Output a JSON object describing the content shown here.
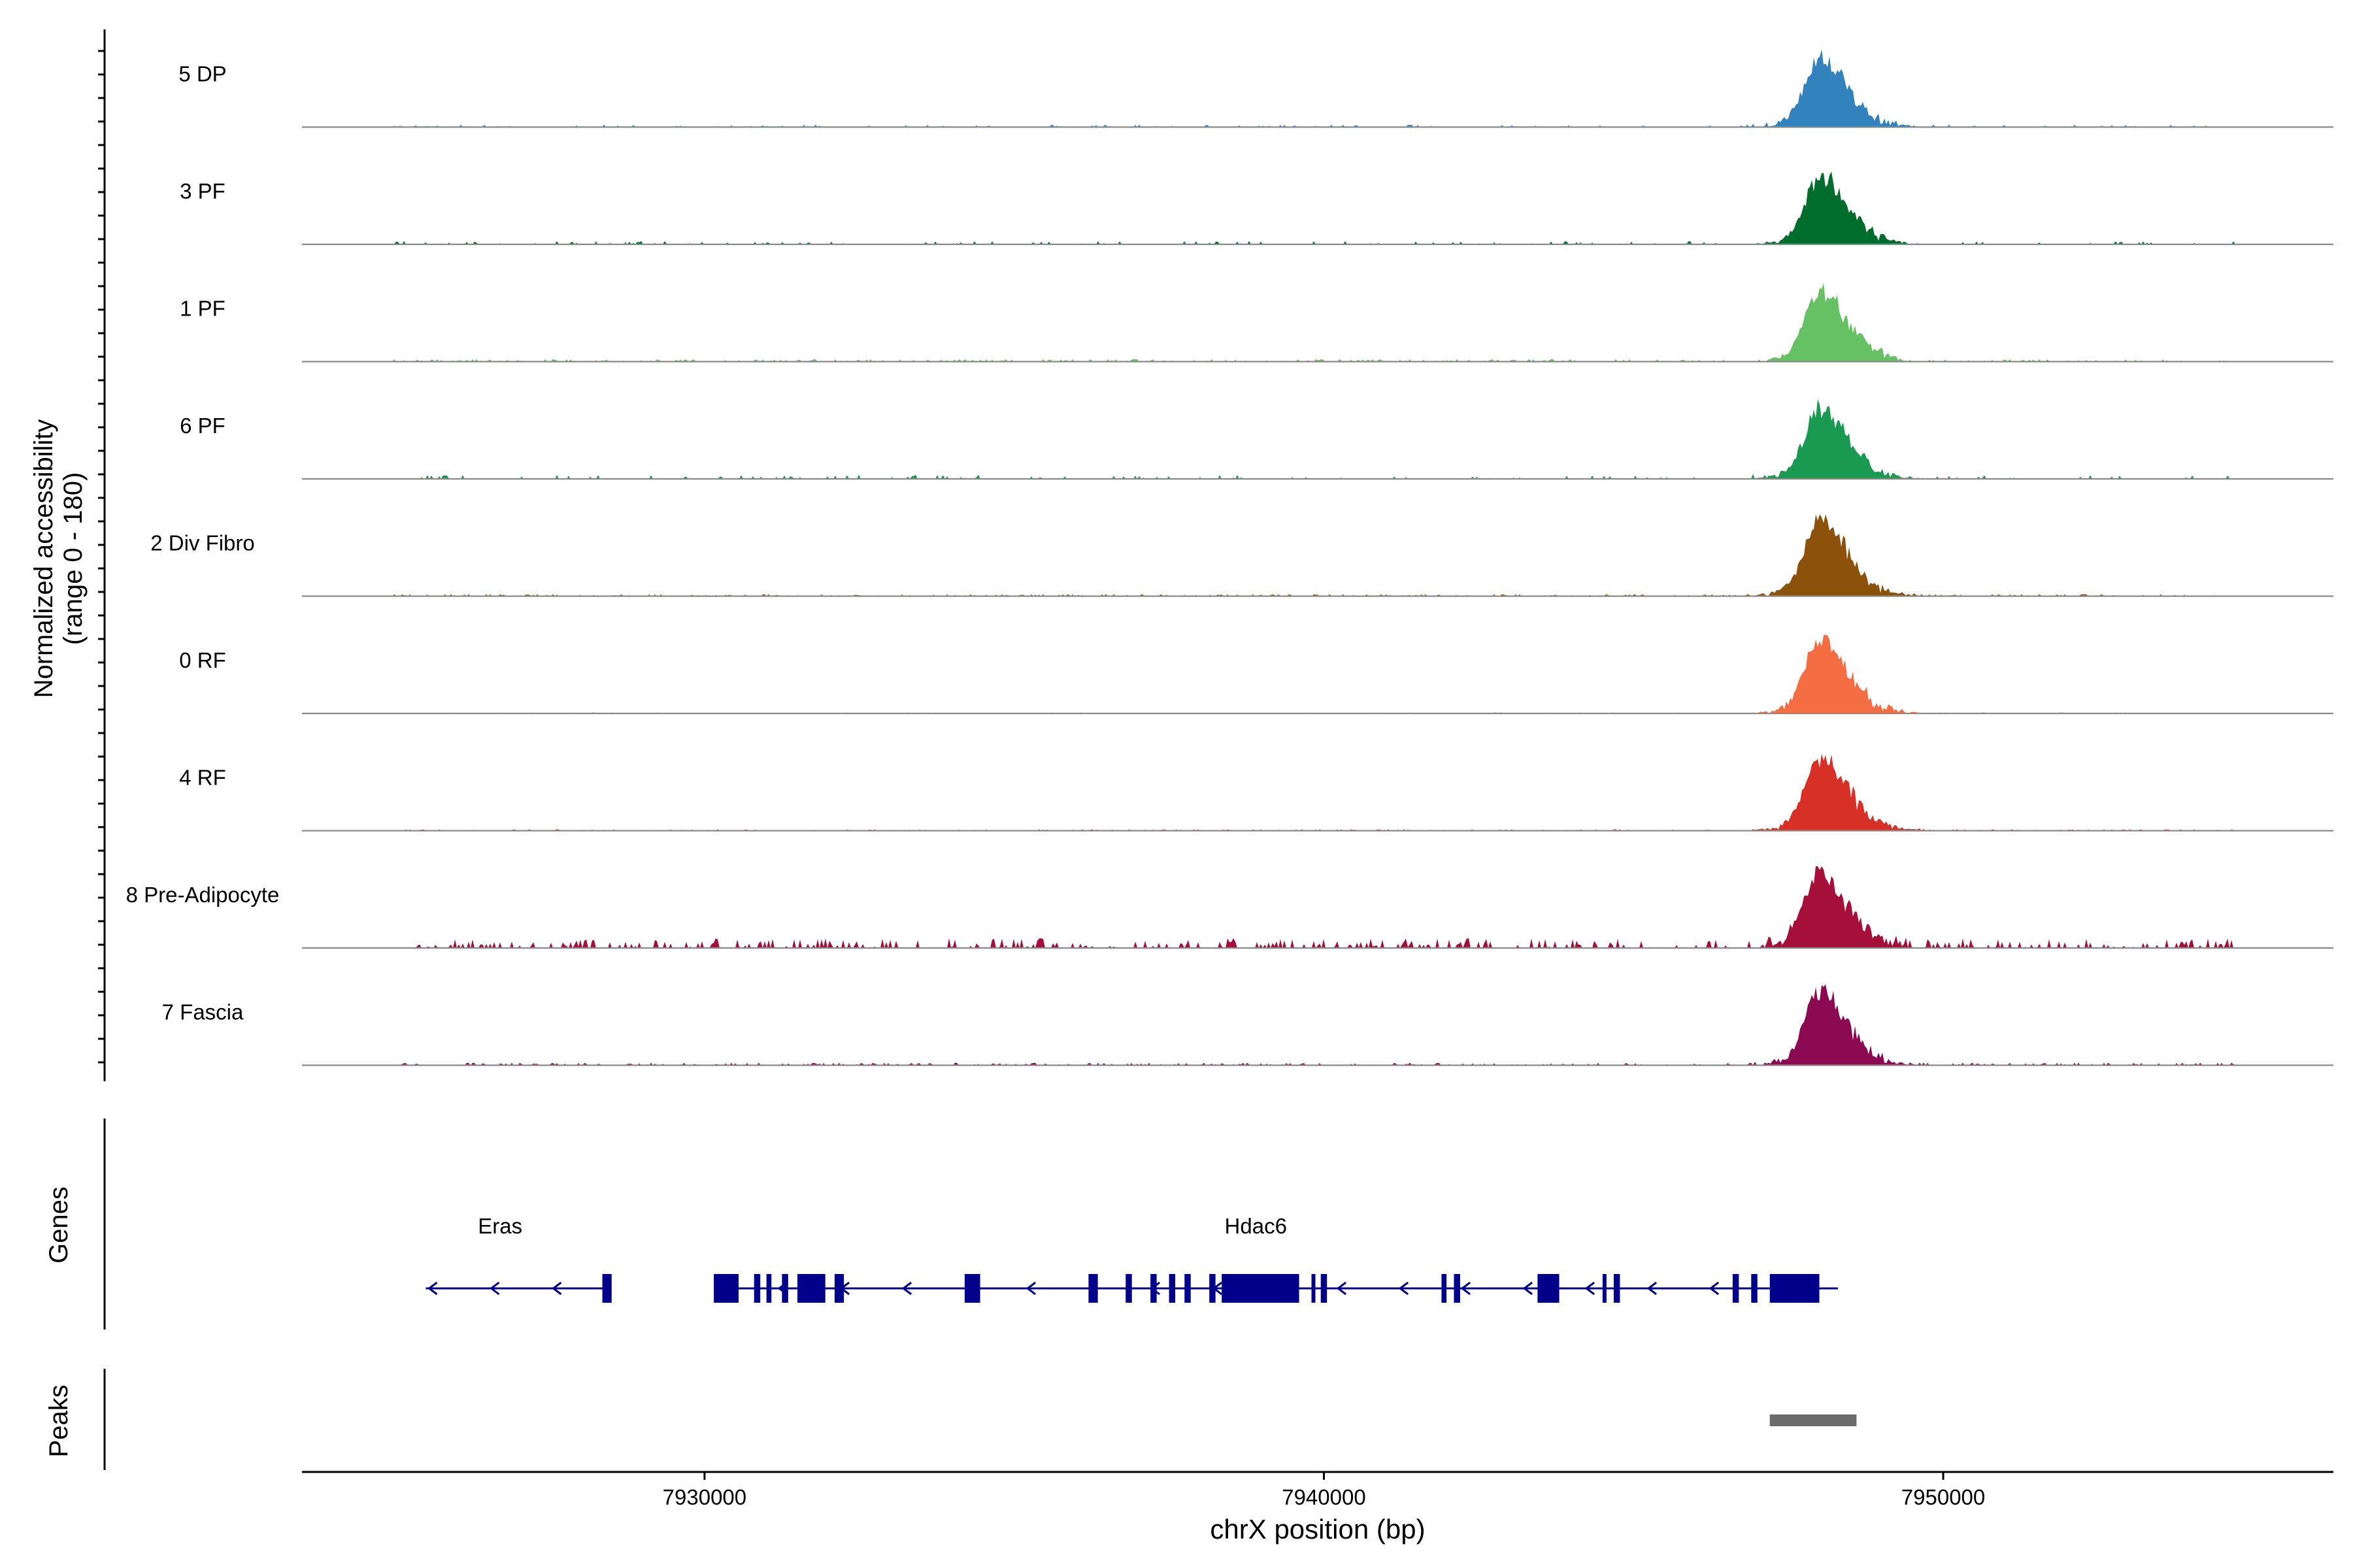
{
  "chart_data": {
    "type": "area",
    "title": "",
    "ylabel_line1": "Normalized accessibility",
    "ylabel_line2": "(range 0 - 180)",
    "xlabel": "chrX position (bp)",
    "chromosome": "chrX",
    "x_range": [
      7923500,
      7956300
    ],
    "y_range": [
      0,
      180
    ],
    "x_ticks": [
      {
        "value": 7930000,
        "label": "7930000"
      },
      {
        "value": 7940000,
        "label": "7940000"
      },
      {
        "value": 7950000,
        "label": "7950000"
      }
    ],
    "tracks": [
      {
        "name": "5 DP",
        "color": "#3182bd",
        "peak": 0.93,
        "bg": 0.03,
        "noise": "sparse"
      },
      {
        "name": "3 PF",
        "color": "#006d2c",
        "peak": 0.9,
        "bg": 0.04,
        "noise": "sparse"
      },
      {
        "name": "1 PF",
        "color": "#66c164",
        "peak": 0.95,
        "bg": 0.05,
        "noise": "flat"
      },
      {
        "name": "6 PF",
        "color": "#1a9a50",
        "peak": 0.92,
        "bg": 0.05,
        "noise": "sparse"
      },
      {
        "name": "2 Div Fibro",
        "color": "#8c510a",
        "peak": 1.0,
        "bg": 0.04,
        "noise": "flat"
      },
      {
        "name": "0 RF",
        "color": "#f46d43",
        "peak": 0.98,
        "bg": 0.02,
        "noise": "flat"
      },
      {
        "name": "4 RF",
        "color": "#d73027",
        "peak": 0.96,
        "bg": 0.03,
        "noise": "flat"
      },
      {
        "name": "8 Pre-Adipocyte",
        "color": "#a50f3a",
        "peak": 1.0,
        "bg": 0.12,
        "noise": "blocky"
      },
      {
        "name": "7 Fascia",
        "color": "#8c0a52",
        "peak": 0.97,
        "bg": 0.05,
        "noise": "flat"
      }
    ],
    "peak_center": 7948000,
    "genes_label": "Genes",
    "genes": [
      {
        "name": "Eras",
        "label_pos": 7926700,
        "start": 7925500,
        "end": 7928500,
        "strand": "-",
        "exons": [
          [
            7928350,
            7928500
          ]
        ]
      },
      {
        "name": "Hdac6",
        "label_pos": 7938900,
        "start": 7930150,
        "end": 7948300,
        "strand": "-",
        "exons": [
          [
            7930150,
            7930550
          ],
          [
            7930800,
            7930900
          ],
          [
            7931000,
            7931080
          ],
          [
            7931250,
            7931350
          ],
          [
            7931500,
            7931950
          ],
          [
            7932100,
            7932250
          ],
          [
            7934200,
            7934450
          ],
          [
            7936200,
            7936350
          ],
          [
            7936800,
            7936900
          ],
          [
            7937200,
            7937300
          ],
          [
            7937500,
            7937600
          ],
          [
            7937750,
            7937850
          ],
          [
            7938150,
            7938250
          ],
          [
            7938350,
            7939600
          ],
          [
            7939800,
            7939850
          ],
          [
            7939950,
            7940050
          ],
          [
            7941900,
            7941980
          ],
          [
            7942100,
            7942200
          ],
          [
            7943450,
            7943800
          ],
          [
            7944500,
            7944550
          ],
          [
            7944680,
            7944780
          ],
          [
            7946600,
            7946700
          ],
          [
            7946900,
            7947000
          ],
          [
            7947200,
            7948000
          ]
        ]
      }
    ],
    "peaks_label": "Peaks",
    "peaks": [
      [
        7947200,
        7948600
      ]
    ]
  }
}
